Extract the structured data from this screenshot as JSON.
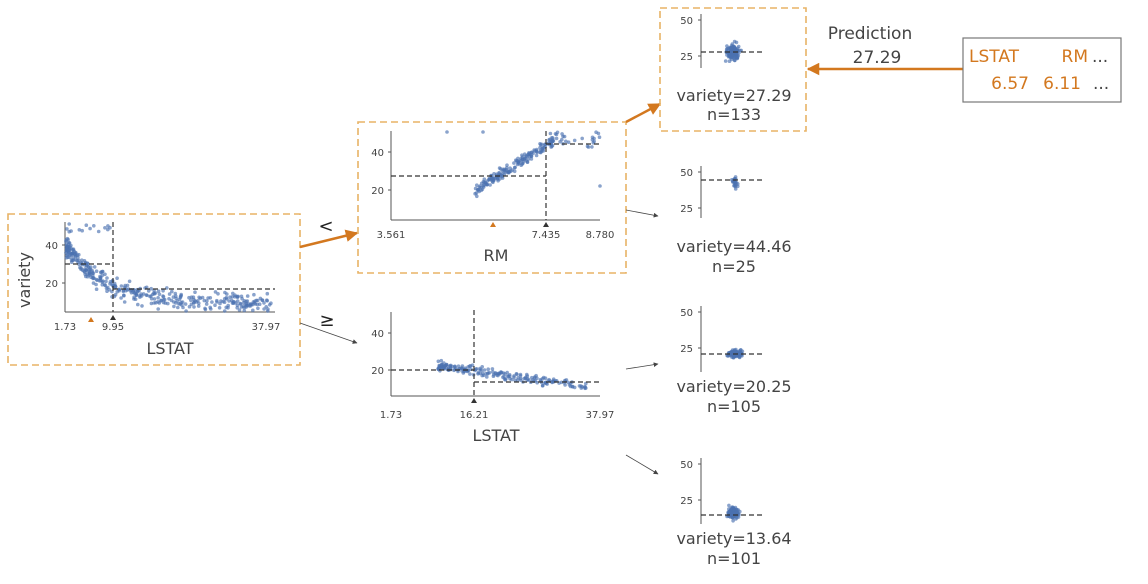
{
  "root": {
    "feature": "LSTAT",
    "ylabel": "variety",
    "split_label": "9.95",
    "x_ticks": [
      "1.73",
      "9.95",
      "37.97"
    ],
    "y_ticks": [
      "40",
      "20"
    ],
    "edge_less": "<",
    "edge_greater_equal": "≥"
  },
  "node_rm": {
    "feature": "RM",
    "split_label": "7.435",
    "x_ticks": [
      "3.561",
      "7.435",
      "8.780"
    ],
    "y_ticks": [
      "40",
      "20"
    ]
  },
  "node_lstat": {
    "feature": "LSTAT",
    "split_label": "16.21",
    "x_ticks": [
      "1.73",
      "16.21",
      "37.97"
    ],
    "y_ticks": [
      "40",
      "20"
    ]
  },
  "leaves": [
    {
      "id": "leaf-1",
      "mean_label": "variety=27.29",
      "n_label": "n=133",
      "y_ticks": [
        "50",
        "25"
      ],
      "mean": 27.29,
      "n": 133,
      "highlighted": true
    },
    {
      "id": "leaf-2",
      "mean_label": "variety=44.46",
      "n_label": "n=25",
      "y_ticks": [
        "50",
        "25"
      ],
      "mean": 44.46,
      "n": 25,
      "highlighted": false
    },
    {
      "id": "leaf-3",
      "mean_label": "variety=20.25",
      "n_label": "n=105",
      "y_ticks": [
        "50",
        "25"
      ],
      "mean": 20.25,
      "n": 105,
      "highlighted": false
    },
    {
      "id": "leaf-4",
      "mean_label": "variety=13.64",
      "n_label": "n=101",
      "y_ticks": [
        "50",
        "25"
      ],
      "mean": 13.64,
      "n": 101,
      "highlighted": false
    }
  ],
  "prediction": {
    "title": "Prediction",
    "value": "27.29"
  },
  "instance": {
    "headers": [
      "LSTAT",
      "RM",
      "..."
    ],
    "values": [
      "6.57",
      "6.11",
      "..."
    ]
  },
  "colors": {
    "highlight": "#d3781f",
    "box_border": "#e8b366",
    "points": "#4c72b0",
    "axis": "#555555",
    "text": "#444444"
  }
}
